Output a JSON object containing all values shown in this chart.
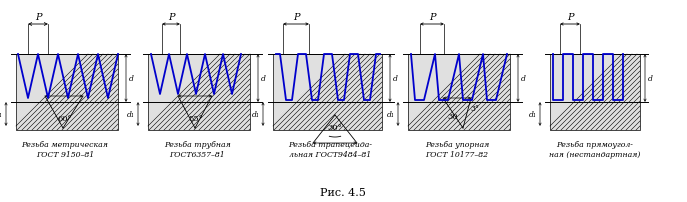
{
  "title": "Рис. 4.5",
  "labels": [
    [
      "Резьба метрическая",
      "ГОСТ 9150–81"
    ],
    [
      "Резьба трубная",
      "ГОСТ6357–81"
    ],
    [
      "Резьба трапецеида-",
      "льная ГОСТ9484–81"
    ],
    [
      "Резьба упорная",
      "ГОСТ 10177–82"
    ],
    [
      "Резьба прямоугол-",
      "ная (нестандартная)"
    ]
  ],
  "background_color": "#ffffff",
  "thread_color": "#0000cc",
  "line_color": "#000000",
  "hatch_fill": "#e0e0e0"
}
